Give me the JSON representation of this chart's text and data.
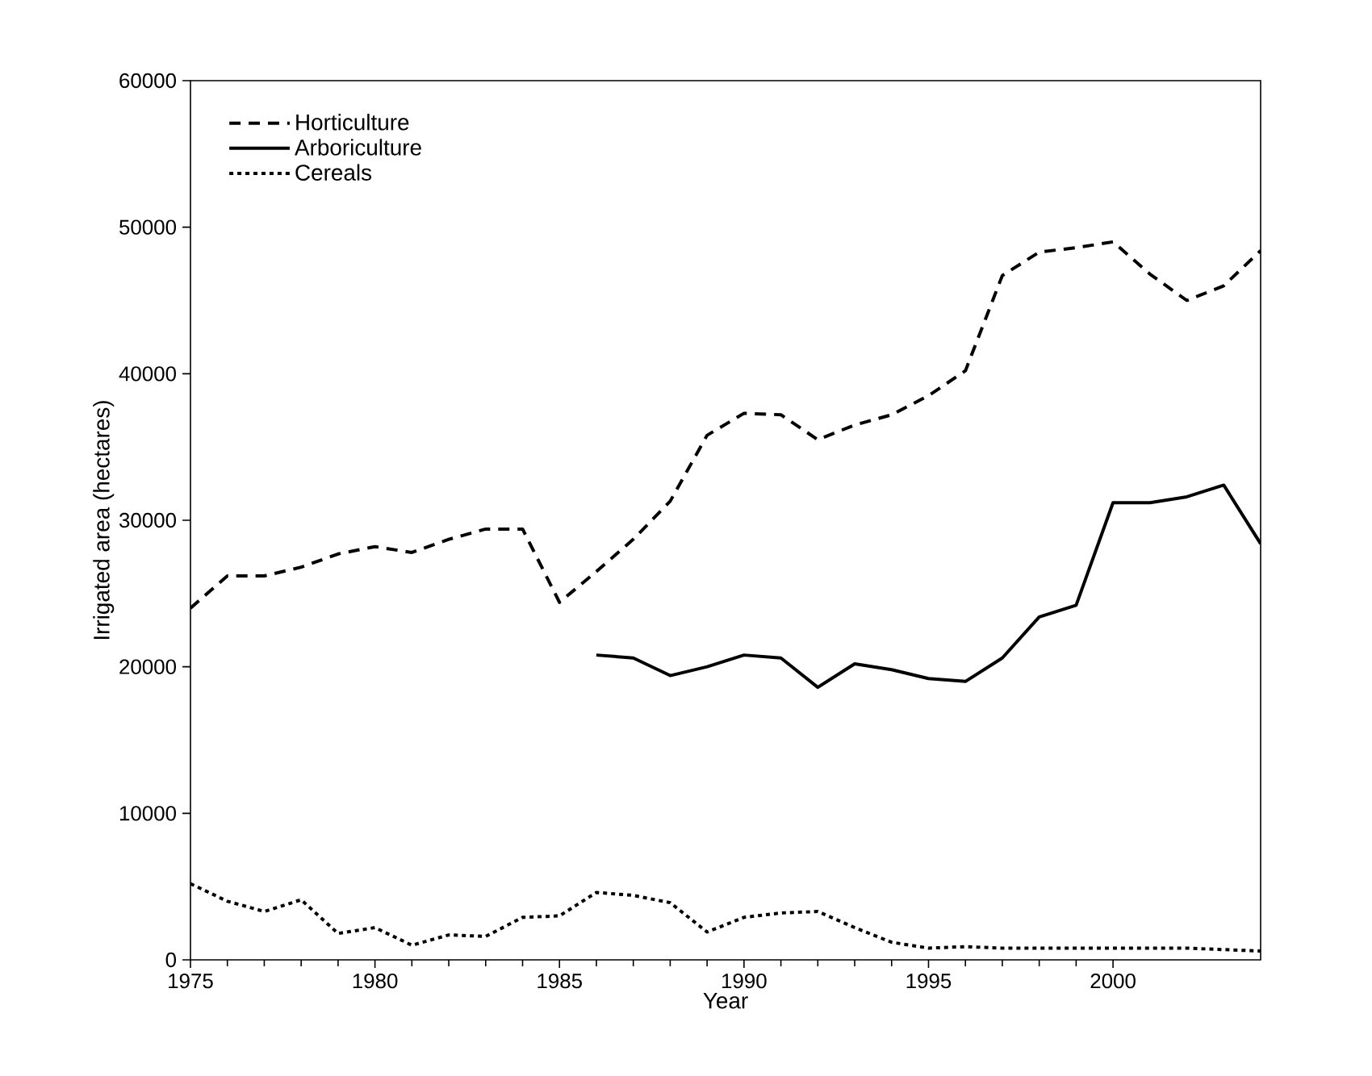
{
  "chart_data": {
    "type": "line",
    "xlabel": "Year",
    "ylabel": "Irrigated area (hectares)",
    "xlim": [
      1975,
      2004
    ],
    "xticks": [
      1975,
      1980,
      1985,
      1990,
      1995,
      2000
    ],
    "ylim": [
      0,
      60000
    ],
    "yticks": [
      0,
      10000,
      20000,
      30000,
      40000,
      50000,
      60000
    ],
    "grid": false,
    "legend": "top left",
    "marker": "none",
    "series": [
      {
        "name": "Horticulture",
        "color": "#000000",
        "line_style": "dashed",
        "x": [
          1975,
          1976,
          1977,
          1978,
          1979,
          1980,
          1981,
          1982,
          1983,
          1984,
          1985,
          1986,
          1987,
          1988,
          1989,
          1990,
          1991,
          1992,
          1993,
          1994,
          1995,
          1996,
          1997,
          1998,
          1999,
          2000,
          2001,
          2002,
          2003,
          2004
        ],
        "values": [
          24000,
          26200,
          26200,
          26800,
          27700,
          28200,
          27800,
          28700,
          29400,
          29400,
          24400,
          26500,
          28700,
          31300,
          35800,
          37300,
          37200,
          35500,
          36500,
          37200,
          38500,
          40200,
          46700,
          48300,
          48600,
          49000,
          46800,
          45000,
          46000,
          48400
        ]
      },
      {
        "name": "Arboriculture",
        "color": "#000000",
        "line_style": "solid",
        "x": [
          1986,
          1987,
          1988,
          1989,
          1990,
          1991,
          1992,
          1993,
          1994,
          1995,
          1996,
          1997,
          1998,
          1999,
          2000,
          2001,
          2002,
          2003,
          2004
        ],
        "values": [
          20800,
          20600,
          19400,
          20000,
          20800,
          20600,
          18600,
          20200,
          19800,
          19200,
          19000,
          20600,
          23400,
          24200,
          31200,
          31200,
          31600,
          32400,
          28400
        ]
      },
      {
        "name": "Cereals",
        "color": "#000000",
        "line_style": "dotted",
        "x": [
          1975,
          1976,
          1977,
          1978,
          1979,
          1980,
          1981,
          1982,
          1983,
          1984,
          1985,
          1986,
          1987,
          1988,
          1989,
          1990,
          1991,
          1992,
          1993,
          1994,
          1995,
          1996,
          1997,
          1998,
          1999,
          2000,
          2001,
          2002,
          2003,
          2004
        ],
        "values": [
          5200,
          4000,
          3300,
          4100,
          1800,
          2200,
          1000,
          1700,
          1600,
          2900,
          3000,
          4600,
          4400,
          3900,
          1900,
          2900,
          3200,
          3300,
          2200,
          1200,
          800,
          900,
          800,
          800,
          800,
          800,
          800,
          800,
          700,
          600
        ]
      }
    ]
  }
}
